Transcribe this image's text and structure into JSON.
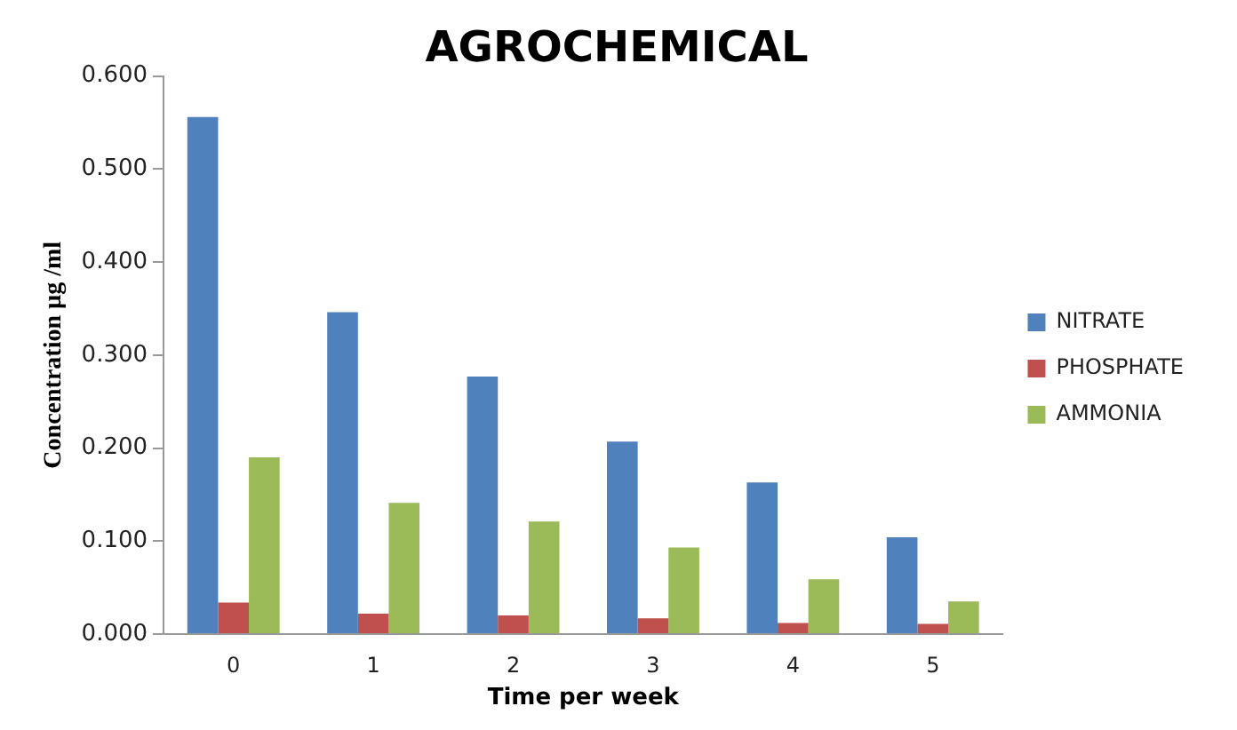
{
  "chart_data": {
    "type": "bar",
    "title": "AGROCHEMICAL",
    "xlabel": "Time per week",
    "ylabel": "Concentration µg /ml",
    "categories": [
      "0",
      "1",
      "2",
      "3",
      "4",
      "5"
    ],
    "series": [
      {
        "name": "NITRATE",
        "color": "#4f81bd",
        "values": [
          0.556,
          0.346,
          0.277,
          0.207,
          0.163,
          0.104
        ]
      },
      {
        "name": "PHOSPHATE",
        "color": "#c0504d",
        "values": [
          0.034,
          0.022,
          0.02,
          0.017,
          0.012,
          0.011
        ]
      },
      {
        "name": "AMMONIA",
        "color": "#9bbb59",
        "values": [
          0.19,
          0.141,
          0.121,
          0.093,
          0.059,
          0.035
        ]
      }
    ],
    "ylim": [
      0,
      0.6
    ],
    "yticks": [
      {
        "value": 0,
        "label": "0.000"
      },
      {
        "value": 0.1,
        "label": "0.100"
      },
      {
        "value": 0.2,
        "label": "0.200"
      },
      {
        "value": 0.3,
        "label": "0.300"
      },
      {
        "value": 0.4,
        "label": "0.400"
      },
      {
        "value": 0.5,
        "label": "0.500"
      },
      {
        "value": 0.6,
        "label": "0.600"
      }
    ],
    "grid": false,
    "legend": "right"
  }
}
